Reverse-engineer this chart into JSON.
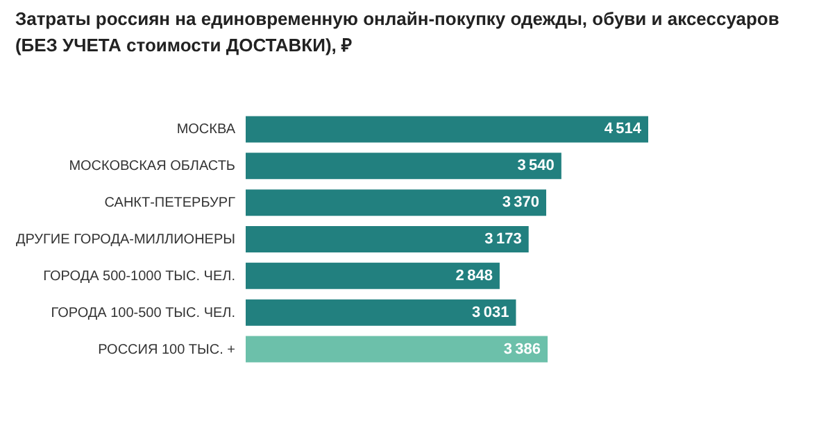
{
  "chart_data": {
    "type": "bar",
    "orientation": "horizontal",
    "title": [
      "Затраты россиян на единовременную онлайн-покупку одежды, обуви и аксессуаров",
      "(БЕЗ УЧЕТА стоимости ДОСТАВКИ), ₽"
    ],
    "categories": [
      "МОСКВА",
      "МОСКОВСКАЯ ОБЛАСТЬ",
      "САНКТ-ПЕТЕРБУРГ",
      "ДРУГИЕ ГОРОДА-МИЛЛИОНЕРЫ",
      "ГОРОДА 500-1000 ТЫС. ЧЕЛ.",
      "ГОРОДА 100-500 ТЫС. ЧЕЛ.",
      "РОССИЯ 100 ТЫС. +"
    ],
    "values": [
      4514,
      3540,
      3370,
      3173,
      2848,
      3031,
      3386
    ],
    "colors": [
      "#22807f",
      "#22807f",
      "#22807f",
      "#22807f",
      "#22807f",
      "#22807f",
      "#6cc0aa"
    ],
    "data_labels": true
  }
}
